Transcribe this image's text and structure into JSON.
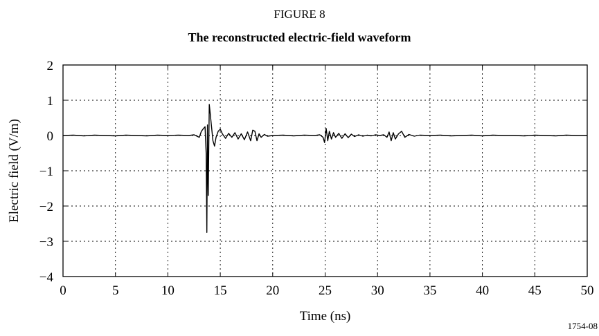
{
  "figure": {
    "number_label": "FIGURE 8",
    "title": "The reconstructed electric-field waveform",
    "doc_id": "1754-08"
  },
  "chart_data": {
    "type": "line",
    "title": "The reconstructed electric-field waveform",
    "xlabel": "Time (ns)",
    "ylabel": "Electric field (V/m)",
    "xlim": [
      0,
      50
    ],
    "ylim": [
      -4,
      2
    ],
    "x_ticks": [
      0,
      5,
      10,
      15,
      20,
      25,
      30,
      35,
      40,
      45,
      50
    ],
    "y_ticks": [
      2,
      1,
      0,
      -1,
      -2,
      -3,
      -4
    ],
    "x_tick_labels": [
      "0",
      "5",
      "10",
      "15",
      "20",
      "25",
      "30",
      "35",
      "40",
      "45",
      "50"
    ],
    "y_tick_labels": [
      "2",
      "1",
      "0",
      "−1",
      "−2",
      "−3",
      "−4"
    ],
    "grid": "dotted",
    "legend": "none",
    "line_color": "#000000",
    "series": [
      {
        "x": [
          0,
          1,
          2,
          3,
          4,
          5,
          6,
          7,
          8,
          9,
          10,
          11,
          12,
          12.5,
          13.0,
          13.2,
          13.4,
          13.55,
          13.65,
          13.72,
          13.78,
          13.85,
          13.95,
          14.05,
          14.15,
          14.3,
          14.45,
          14.6,
          14.8,
          15.0,
          15.2,
          15.5,
          15.8,
          16.1,
          16.4,
          16.7,
          17.0,
          17.3,
          17.6,
          17.9,
          18.1,
          18.3,
          18.5,
          18.7,
          18.9,
          19.2,
          19.5,
          20,
          21,
          22,
          23,
          24,
          24.5,
          24.8,
          24.95,
          25.1,
          25.25,
          25.4,
          25.6,
          25.8,
          26.0,
          26.3,
          26.6,
          26.9,
          27.2,
          27.5,
          27.8,
          28.2,
          28.6,
          29.0,
          29.4,
          29.8,
          30.2,
          30.6,
          30.9,
          31.1,
          31.3,
          31.5,
          31.7,
          32.0,
          32.3,
          32.6,
          33.0,
          33.5,
          34,
          35,
          36,
          37,
          38,
          39,
          40,
          41,
          42,
          43,
          44,
          45,
          46,
          47,
          48,
          49,
          50
        ],
        "y": [
          0,
          0.01,
          -0.01,
          0.01,
          0,
          -0.01,
          0.01,
          0,
          -0.01,
          0.01,
          0,
          0.01,
          0,
          0.02,
          -0.05,
          0.12,
          0.2,
          0.25,
          -0.5,
          -2.75,
          0.3,
          -1.7,
          0.88,
          0.6,
          0.3,
          -0.15,
          -0.3,
          -0.05,
          0.12,
          0.18,
          0.05,
          -0.08,
          0.06,
          -0.05,
          0.08,
          -0.1,
          0.05,
          -0.12,
          0.1,
          -0.15,
          0.15,
          0.12,
          -0.15,
          0.05,
          -0.05,
          0.03,
          -0.02,
          0,
          0.01,
          -0.01,
          0.01,
          0,
          0.02,
          -0.05,
          -0.2,
          0.2,
          -0.15,
          0.12,
          -0.1,
          0.08,
          -0.05,
          0.06,
          -0.08,
          0.05,
          -0.06,
          0.04,
          -0.03,
          0.02,
          -0.02,
          0.01,
          -0.01,
          0.02,
          0,
          0.02,
          -0.05,
          0.1,
          -0.15,
          0.08,
          -0.1,
          0.05,
          0.12,
          -0.05,
          0.03,
          -0.02,
          0.01,
          0,
          0.01,
          -0.01,
          0,
          0.01,
          -0.01,
          0.01,
          0,
          0,
          -0.01,
          0.01,
          0,
          -0.01,
          0.01,
          0,
          0
        ]
      }
    ]
  }
}
